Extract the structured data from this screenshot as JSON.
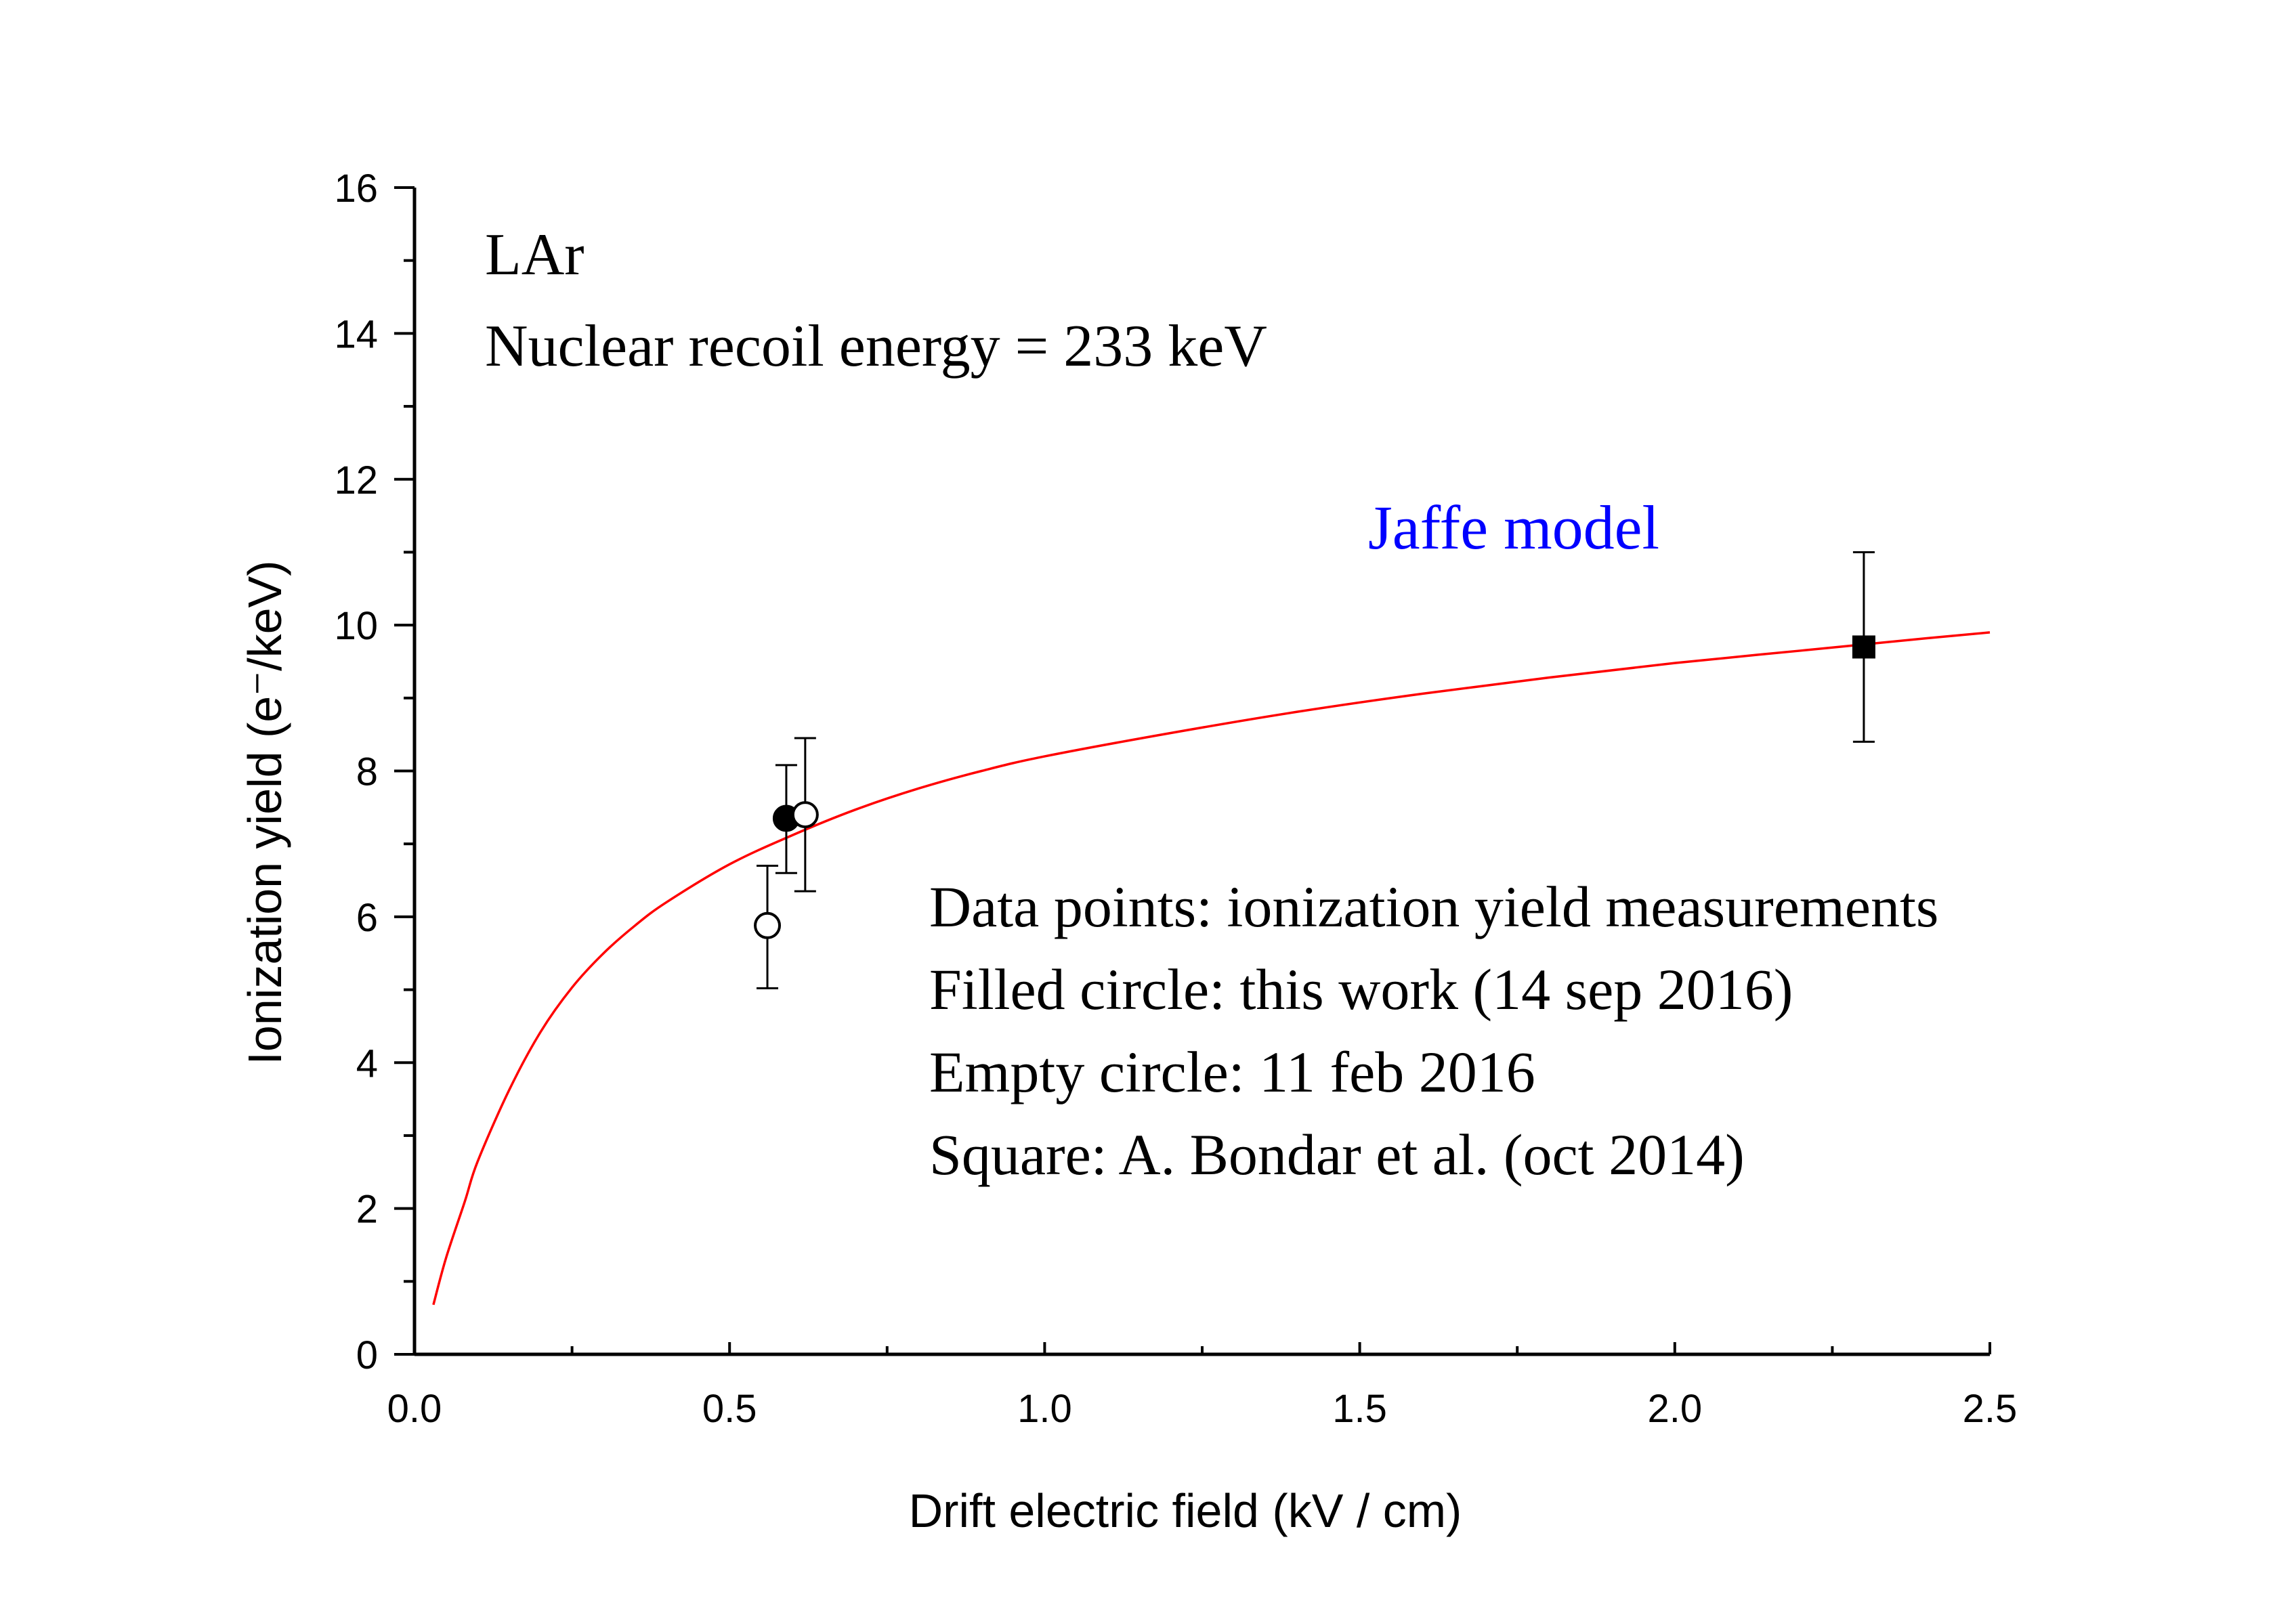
{
  "chart_data": {
    "type": "scatter",
    "xlabel": "Drift electric field (kV / cm)",
    "ylabel": "Ionization yield (e⁻/keV)",
    "xlim": [
      0.0,
      2.5
    ],
    "ylim": [
      0,
      16
    ],
    "x_ticks": [
      "0.0",
      "0.5",
      "1.0",
      "1.5",
      "2.0",
      "2.5"
    ],
    "y_ticks": [
      "0",
      "2",
      "4",
      "6",
      "8",
      "10",
      "12",
      "14",
      "16"
    ],
    "annotations": {
      "medium": "LAr",
      "recoil_energy": "Nuclear recoil energy = 233 keV",
      "model_label": "Jaffe model",
      "legend_lines": [
        "Data points: ionization yield measurements",
        "Filled circle: this work (14 sep 2016)",
        "Empty circle: 11 feb 2016",
        "Square: A. Bondar et al. (oct 2014)"
      ]
    },
    "series": [
      {
        "name": "Filled circle: this work (14 sep 2016)",
        "marker": "filled-circle",
        "points": [
          {
            "x": 0.59,
            "y": 7.35,
            "yerr_low": 6.6,
            "yerr_high": 8.08
          }
        ]
      },
      {
        "name": "Empty circle: 11 feb 2016",
        "marker": "empty-circle",
        "points": [
          {
            "x": 0.56,
            "y": 5.88,
            "yerr_low": 5.02,
            "yerr_high": 6.7
          },
          {
            "x": 0.62,
            "y": 7.4,
            "yerr_low": 6.35,
            "yerr_high": 8.45
          }
        ]
      },
      {
        "name": "Square: A. Bondar et al. (oct 2014)",
        "marker": "filled-square",
        "points": [
          {
            "x": 2.3,
            "y": 9.7,
            "yerr_low": 8.4,
            "yerr_high": 11.0
          }
        ]
      }
    ],
    "curve": {
      "name": "Jaffe model",
      "color": "#ff0000",
      "x": [
        0.03,
        0.05,
        0.08,
        0.1,
        0.15,
        0.2,
        0.25,
        0.3,
        0.35,
        0.4,
        0.5,
        0.6,
        0.7,
        0.8,
        0.9,
        1.0,
        1.2,
        1.4,
        1.6,
        1.8,
        2.0,
        2.2,
        2.4,
        2.5
      ],
      "y": [
        0.68,
        1.32,
        2.1,
        2.64,
        3.62,
        4.42,
        5.03,
        5.5,
        5.88,
        6.2,
        6.72,
        7.12,
        7.47,
        7.76,
        8.0,
        8.2,
        8.52,
        8.81,
        9.06,
        9.28,
        9.48,
        9.65,
        9.82,
        9.9
      ]
    },
    "colors": {
      "curve": "#ff0000",
      "model_label": "#0000ff",
      "axis": "#000000",
      "text": "#000000"
    }
  }
}
